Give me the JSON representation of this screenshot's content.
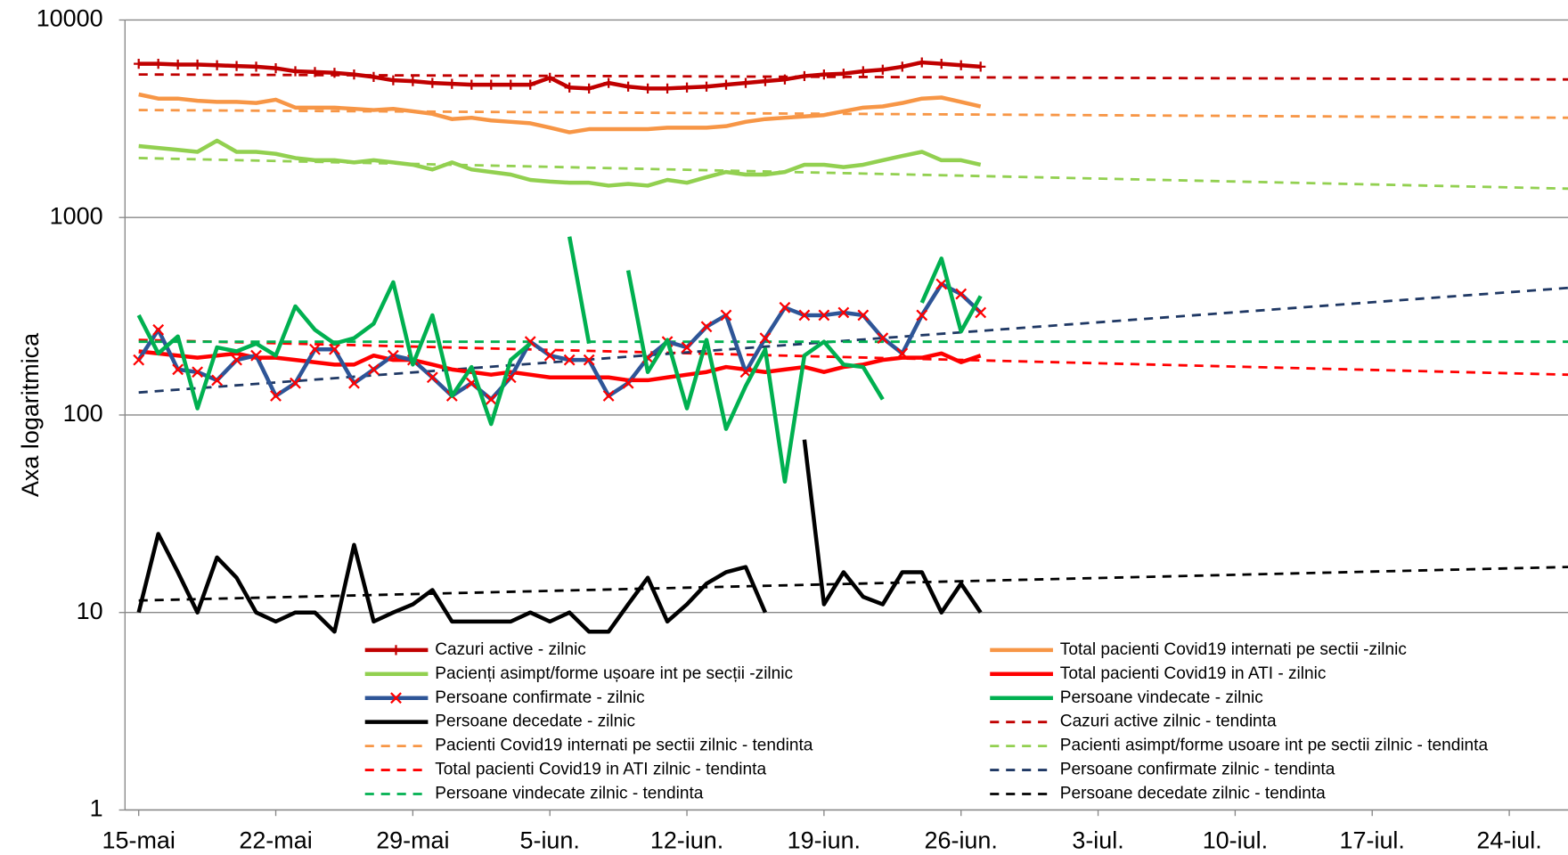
{
  "chart_data": {
    "type": "line",
    "y_label": "Axa logaritmica",
    "log_y": true,
    "grid": true,
    "ylim": [
      1,
      10000
    ],
    "yticks": [
      1,
      10,
      100,
      1000,
      10000
    ],
    "xlim": [
      -0.7,
      73
    ],
    "xticks": [
      {
        "value": 0,
        "label": "15-mai"
      },
      {
        "value": 7,
        "label": "22-mai"
      },
      {
        "value": 14,
        "label": "29-mai"
      },
      {
        "value": 21,
        "label": "5-iun."
      },
      {
        "value": 28,
        "label": "12-iun."
      },
      {
        "value": 35,
        "label": "19-iun."
      },
      {
        "value": 42,
        "label": "26-iun."
      },
      {
        "value": 49,
        "label": "3-iul."
      },
      {
        "value": 56,
        "label": "10-iul."
      },
      {
        "value": 63,
        "label": "17-iul."
      },
      {
        "value": 70,
        "label": "24-iul."
      }
    ],
    "x": [
      0,
      1,
      2,
      3,
      4,
      5,
      6,
      7,
      8,
      9,
      10,
      11,
      12,
      13,
      14,
      15,
      16,
      17,
      18,
      19,
      20,
      21,
      22,
      23,
      24,
      25,
      26,
      27,
      28,
      29,
      30,
      31,
      32,
      33,
      34,
      35,
      36,
      37,
      38,
      39,
      40,
      41,
      42,
      43
    ],
    "series": [
      {
        "name": "Cazuri active - zilnic",
        "color": "#c00000",
        "marker": "+",
        "values": [
          6000,
          6000,
          5950,
          5950,
          5900,
          5850,
          5800,
          5700,
          5500,
          5450,
          5400,
          5300,
          5150,
          4950,
          4900,
          4800,
          4750,
          4700,
          4700,
          4700,
          4700,
          5100,
          4550,
          4500,
          4800,
          4600,
          4500,
          4500,
          4550,
          4600,
          4700,
          4800,
          4900,
          5000,
          5200,
          5300,
          5350,
          5500,
          5600,
          5800,
          6100,
          6000,
          5900,
          5800
        ]
      },
      {
        "name": "Total pacienti Covid19 internati pe sectii -zilnic",
        "color": "#f79646",
        "values": [
          4200,
          4000,
          4000,
          3900,
          3850,
          3850,
          3800,
          3950,
          3600,
          3600,
          3600,
          3550,
          3500,
          3550,
          3450,
          3350,
          3150,
          3200,
          3100,
          3050,
          3000,
          2850,
          2700,
          2800,
          2800,
          2800,
          2800,
          2850,
          2850,
          2850,
          2900,
          3050,
          3150,
          3200,
          3250,
          3300,
          3450,
          3600,
          3650,
          3800,
          4000,
          4050,
          3850,
          3650
        ]
      },
      {
        "name": "Pacienți asimpt/forme ușoare int pe secții -zilnic",
        "color": "#92d050",
        "values": [
          2300,
          2250,
          2200,
          2150,
          2450,
          2150,
          2150,
          2100,
          2000,
          1950,
          1950,
          1900,
          1950,
          1900,
          1850,
          1750,
          1900,
          1750,
          1700,
          1650,
          1550,
          1520,
          1500,
          1500,
          1450,
          1480,
          1450,
          1550,
          1500,
          1600,
          1700,
          1650,
          1650,
          1700,
          1850,
          1850,
          1800,
          1850,
          1950,
          2050,
          2150,
          1950,
          1950,
          1850
        ]
      },
      {
        "name": "Total pacienti Covid19 in ATI - zilnic",
        "color": "#ff0000",
        "values": [
          210,
          205,
          200,
          195,
          200,
          205,
          195,
          195,
          190,
          185,
          180,
          180,
          200,
          190,
          190,
          180,
          170,
          165,
          160,
          165,
          160,
          155,
          155,
          155,
          155,
          150,
          150,
          155,
          160,
          165,
          175,
          170,
          165,
          170,
          175,
          165,
          175,
          180,
          190,
          195,
          195,
          205,
          185,
          200
        ]
      },
      {
        "name": "Persoane confirmate - zilnic",
        "color": "#2e5597",
        "marker": "x",
        "marker_color": "#ff0000",
        "values": [
          190,
          270,
          170,
          165,
          150,
          190,
          200,
          125,
          145,
          215,
          215,
          145,
          170,
          200,
          190,
          155,
          125,
          145,
          120,
          155,
          235,
          200,
          190,
          190,
          125,
          145,
          195,
          235,
          220,
          280,
          320,
          165,
          245,
          350,
          320,
          320,
          330,
          320,
          245,
          205,
          320,
          460,
          410,
          330
        ]
      },
      {
        "name": "Persoane vindecate - zilnic",
        "color": "#00b050",
        "values": [
          320,
          205,
          250,
          108,
          220,
          210,
          230,
          200,
          355,
          270,
          230,
          245,
          290,
          470,
          180,
          320,
          125,
          175,
          90,
          190,
          230,
          null,
          800,
          230,
          null,
          540,
          165,
          240,
          108,
          240,
          85,
          140,
          215,
          46,
          200,
          235,
          180,
          175,
          120,
          null,
          370,
          620,
          265,
          400
        ]
      },
      {
        "name": "Persoane decedate - zilnic",
        "color": "#000000",
        "values": [
          10,
          25,
          16,
          10,
          19,
          15,
          10,
          9,
          10,
          10,
          8,
          22,
          9,
          10,
          11,
          13,
          9,
          9,
          9,
          9,
          10,
          9,
          10,
          8,
          8,
          11,
          15,
          9,
          11,
          14,
          16,
          17,
          10,
          null,
          75,
          11,
          16,
          12,
          11,
          16,
          16,
          10,
          14,
          10
        ]
      },
      {
        "name": "Cazuri active zilnic - tendinta",
        "color": "#c00000",
        "dashed": true,
        "x": [
          0,
          73
        ],
        "values": [
          5300,
          5000
        ]
      },
      {
        "name": "Pacienti Covid19 internati pe sectii zilnic - tendinta",
        "color": "#f79646",
        "dashed": true,
        "x": [
          0,
          73
        ],
        "values": [
          3500,
          3200
        ]
      },
      {
        "name": "Pacienti asimpt/forme usoare int pe sectii zilnic - tendinta",
        "color": "#92d050",
        "dashed": true,
        "x": [
          0,
          73
        ],
        "values": [
          2000,
          1400
        ]
      },
      {
        "name": "Total pacienti Covid19 in ATI zilnic - tendinta",
        "color": "#ff0000",
        "dashed": true,
        "x": [
          0,
          73
        ],
        "values": [
          240,
          160
        ]
      },
      {
        "name": "Persoane confirmate zilnic - tendinta",
        "color": "#1f3864",
        "dashed": true,
        "x": [
          0,
          73
        ],
        "values": [
          130,
          440
        ]
      },
      {
        "name": "Persoane vindecate zilnic - tendinta",
        "color": "#00b050",
        "dashed": true,
        "x": [
          0,
          73
        ],
        "values": [
          235,
          235
        ]
      },
      {
        "name": "Persoane decedate zilnic - tendinta",
        "color": "#000000",
        "dashed": true,
        "x": [
          0,
          73
        ],
        "values": [
          11.5,
          17
        ]
      }
    ]
  }
}
